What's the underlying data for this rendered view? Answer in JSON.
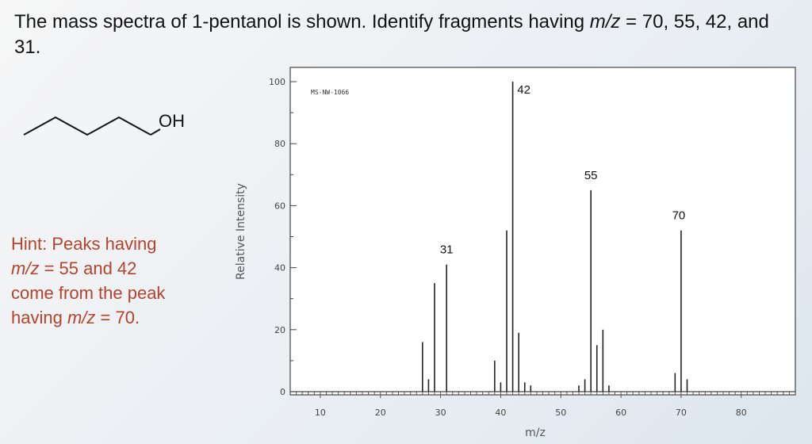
{
  "question": {
    "part1": "The mass spectra of 1-pentanol is shown. Identify fragments having ",
    "mz": "m/z",
    "part2": " = 70, 55, 42, and 31."
  },
  "molecule": {
    "label": "OH"
  },
  "hint": {
    "line1": "Hint: Peaks having",
    "mz1": "m/z",
    "line2": " = 55 and 42",
    "line3": "come from the peak",
    "line4a": "having ",
    "mz2": "m/z",
    "line4b": " = 70."
  },
  "chart_data": {
    "type": "bar",
    "watermark": "MS-NW-1066",
    "xlabel": "m/z",
    "ylabel": "Relative Intensity",
    "xlim": [
      5,
      89
    ],
    "ylim": [
      0,
      100
    ],
    "xticks": [
      10,
      20,
      30,
      40,
      50,
      60,
      70,
      80
    ],
    "yticks": [
      0,
      20,
      40,
      60,
      80,
      100
    ],
    "peaks": [
      {
        "x": 27,
        "y": 16
      },
      {
        "x": 28,
        "y": 4
      },
      {
        "x": 29,
        "y": 35
      },
      {
        "x": 31,
        "y": 41
      },
      {
        "x": 39,
        "y": 10
      },
      {
        "x": 40,
        "y": 3
      },
      {
        "x": 41,
        "y": 52
      },
      {
        "x": 42,
        "y": 100
      },
      {
        "x": 43,
        "y": 19
      },
      {
        "x": 44,
        "y": 3
      },
      {
        "x": 45,
        "y": 2
      },
      {
        "x": 53,
        "y": 2
      },
      {
        "x": 54,
        "y": 4
      },
      {
        "x": 55,
        "y": 65
      },
      {
        "x": 56,
        "y": 15
      },
      {
        "x": 57,
        "y": 20
      },
      {
        "x": 58,
        "y": 2
      },
      {
        "x": 69,
        "y": 6
      },
      {
        "x": 70,
        "y": 52
      },
      {
        "x": 71,
        "y": 4
      }
    ],
    "annotations": [
      {
        "x": 42,
        "text": "42"
      },
      {
        "x": 55,
        "text": "55"
      },
      {
        "x": 70,
        "text": "70"
      },
      {
        "x": 31,
        "text": "31"
      }
    ]
  }
}
